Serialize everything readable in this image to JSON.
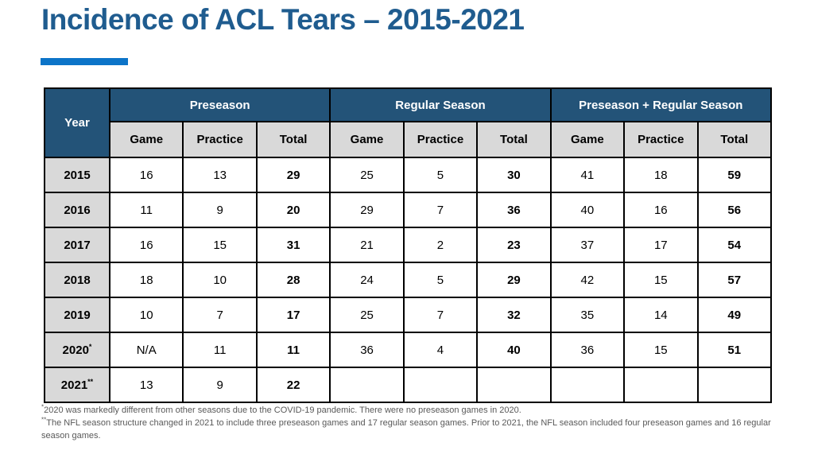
{
  "slide": {
    "title": "Incidence of ACL Tears – 2015-2021",
    "colors": {
      "title_text": "#1F5C8F",
      "accent_bar": "#0C74C8",
      "header_bg": "#235378",
      "header_text": "#FFFFFF",
      "subheader_bg": "#D9D9D9",
      "year_col_bg": "#D9D9D9",
      "table_border": "#000000",
      "footnote_text": "#595959"
    }
  },
  "table": {
    "year_header": "Year",
    "groups": [
      {
        "label": "Preseason"
      },
      {
        "label": "Regular Season"
      },
      {
        "label": "Preseason + Regular Season"
      }
    ],
    "sub_headers": [
      "Game",
      "Practice",
      "Total"
    ],
    "rows": [
      {
        "year": "2015",
        "year_sup": "",
        "cells": [
          "16",
          "13",
          "29",
          "25",
          "5",
          "30",
          "41",
          "18",
          "59"
        ]
      },
      {
        "year": "2016",
        "year_sup": "",
        "cells": [
          "11",
          "9",
          "20",
          "29",
          "7",
          "36",
          "40",
          "16",
          "56"
        ]
      },
      {
        "year": "2017",
        "year_sup": "",
        "cells": [
          "16",
          "15",
          "31",
          "21",
          "2",
          "23",
          "37",
          "17",
          "54"
        ]
      },
      {
        "year": "2018",
        "year_sup": "",
        "cells": [
          "18",
          "10",
          "28",
          "24",
          "5",
          "29",
          "42",
          "15",
          "57"
        ]
      },
      {
        "year": "2019",
        "year_sup": "",
        "cells": [
          "10",
          "7",
          "17",
          "25",
          "7",
          "32",
          "35",
          "14",
          "49"
        ]
      },
      {
        "year": "2020",
        "year_sup": "*",
        "cells": [
          "N/A",
          "11",
          "11",
          "36",
          "4",
          "40",
          "36",
          "15",
          "51"
        ]
      },
      {
        "year": "2021",
        "year_sup": "**",
        "cells": [
          "13",
          "9",
          "22",
          "",
          "",
          "",
          "",
          "",
          ""
        ]
      }
    ]
  },
  "footnotes": [
    {
      "sup": "*",
      "text": "2020 was markedly different from other seasons due to the COVID-19 pandemic. There were no preseason games in 2020."
    },
    {
      "sup": "**",
      "text": "The NFL season structure changed in 2021 to include three preseason games and 17 regular season games. Prior to 2021, the NFL season included four preseason games and 16 regular season games."
    }
  ]
}
